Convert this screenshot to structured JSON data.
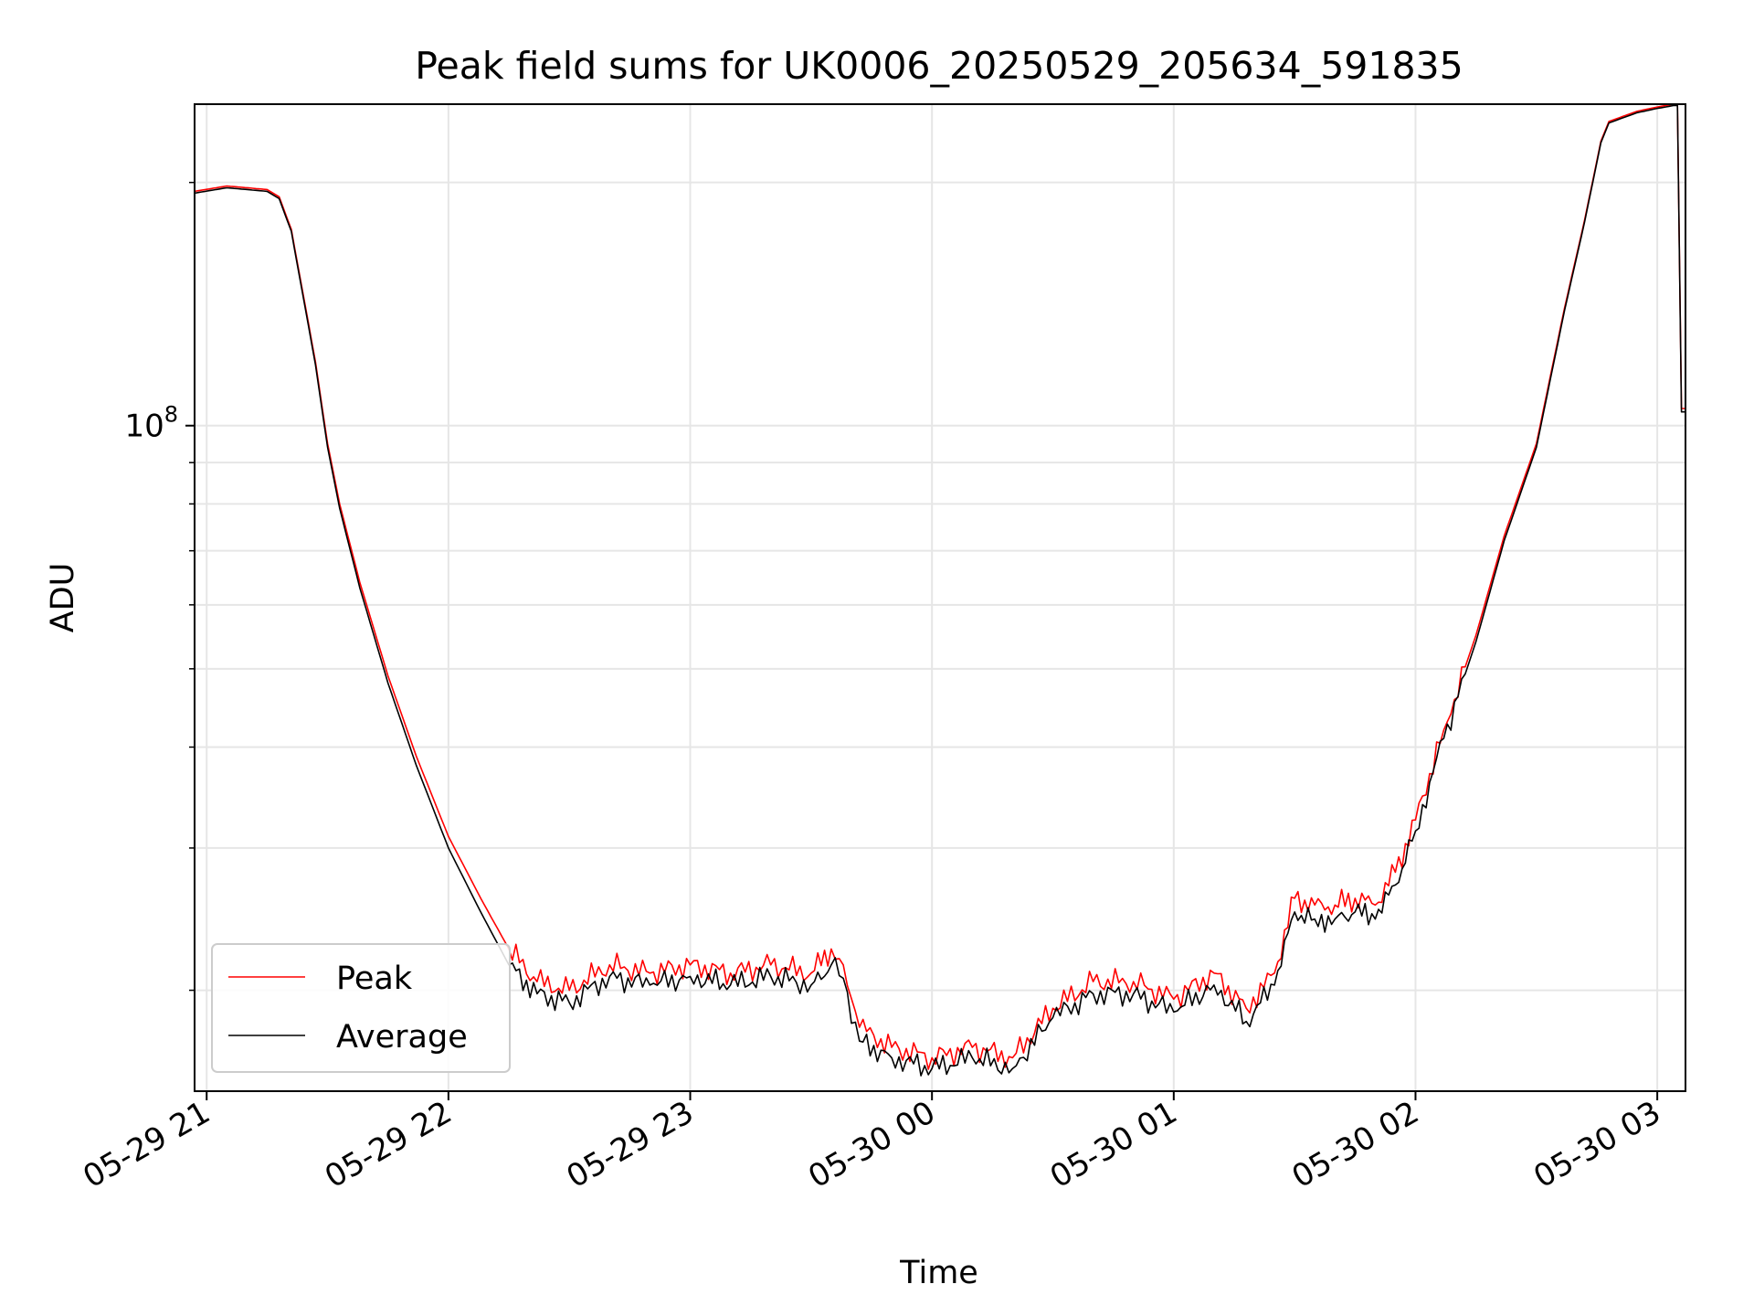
{
  "chart_data": {
    "type": "line",
    "title": "Peak field sums for UK0006_20250529_205634_591835",
    "xlabel": "Time",
    "ylabel": "ADU",
    "y_scale": "log",
    "grid": true,
    "legend_position": "lower-left",
    "xlim": [
      "2025-05-29 20:57",
      "2025-05-30 03:07"
    ],
    "ylim": [
      15000000,
      250000000
    ],
    "x_ticks": [
      "05-29 21",
      "05-29 22",
      "05-29 23",
      "05-30 00",
      "05-30 01",
      "05-30 02",
      "05-30 03"
    ],
    "y_major_ticks": [
      {
        "value": 100000000,
        "label_base": "10",
        "label_exp": "8"
      }
    ],
    "y_minor_ticks": [
      20000000,
      30000000,
      40000000,
      50000000,
      60000000,
      70000000,
      80000000,
      90000000,
      200000000
    ],
    "series": [
      {
        "name": "Peak",
        "color": "#ff0000",
        "x": [
          "2025-05-29 20:57",
          "2025-05-29 21:05",
          "2025-05-29 21:15",
          "2025-05-29 21:18",
          "2025-05-29 21:21",
          "2025-05-29 21:27",
          "2025-05-29 21:30",
          "2025-05-29 21:33",
          "2025-05-29 21:38",
          "2025-05-29 21:45",
          "2025-05-29 21:52",
          "2025-05-29 22:00",
          "2025-05-29 22:08",
          "2025-05-29 22:15",
          "2025-05-29 22:22",
          "2025-05-29 22:30",
          "2025-05-29 22:40",
          "2025-05-29 22:50",
          "2025-05-29 23:00",
          "2025-05-29 23:10",
          "2025-05-29 23:20",
          "2025-05-29 23:30",
          "2025-05-29 23:35",
          "2025-05-29 23:38",
          "2025-05-29 23:42",
          "2025-05-29 23:50",
          "2025-05-30 00:00",
          "2025-05-30 00:10",
          "2025-05-30 00:20",
          "2025-05-30 00:30",
          "2025-05-30 00:40",
          "2025-05-30 00:50",
          "2025-05-30 01:00",
          "2025-05-30 01:10",
          "2025-05-30 01:18",
          "2025-05-30 01:25",
          "2025-05-30 01:30",
          "2025-05-30 01:35",
          "2025-05-30 01:40",
          "2025-05-30 01:45",
          "2025-05-30 01:50",
          "2025-05-30 01:55",
          "2025-05-30 02:00",
          "2025-05-30 02:07",
          "2025-05-30 02:15",
          "2025-05-30 02:22",
          "2025-05-30 02:30",
          "2025-05-30 02:37",
          "2025-05-30 02:42",
          "2025-05-30 02:46",
          "2025-05-30 02:48",
          "2025-05-30 02:55",
          "2025-05-30 03:00",
          "2025-05-30 03:04",
          "2025-05-30 03:05",
          "2025-05-30 03:06",
          "2025-05-30 03:07"
        ],
        "y": [
          195000000,
          198000000,
          196000000,
          192000000,
          175000000,
          120000000,
          95000000,
          80000000,
          64000000,
          49000000,
          39000000,
          31000000,
          26000000,
          22500000,
          20500000,
          20000000,
          21500000,
          21000000,
          21500000,
          21000000,
          21500000,
          21000000,
          22500000,
          21500000,
          18000000,
          17000000,
          16500000,
          17000000,
          16500000,
          19000000,
          20500000,
          20500000,
          19500000,
          21000000,
          19000000,
          21000000,
          26000000,
          25500000,
          25500000,
          26000000,
          25500000,
          28000000,
          32500000,
          42000000,
          55000000,
          73000000,
          95000000,
          140000000,
          180000000,
          225000000,
          238000000,
          245000000,
          248000000,
          250000000,
          250000000,
          105000000,
          105000000
        ]
      },
      {
        "name": "Average",
        "color": "#000000",
        "x": [
          "2025-05-29 20:57",
          "2025-05-29 21:05",
          "2025-05-29 21:15",
          "2025-05-29 21:18",
          "2025-05-29 21:21",
          "2025-05-29 21:27",
          "2025-05-29 21:30",
          "2025-05-29 21:33",
          "2025-05-29 21:38",
          "2025-05-29 21:45",
          "2025-05-29 21:52",
          "2025-05-29 22:00",
          "2025-05-29 22:08",
          "2025-05-29 22:15",
          "2025-05-29 22:22",
          "2025-05-29 22:30",
          "2025-05-29 22:40",
          "2025-05-29 22:50",
          "2025-05-29 23:00",
          "2025-05-29 23:10",
          "2025-05-29 23:20",
          "2025-05-29 23:30",
          "2025-05-29 23:35",
          "2025-05-29 23:38",
          "2025-05-29 23:42",
          "2025-05-29 23:50",
          "2025-05-30 00:00",
          "2025-05-30 00:10",
          "2025-05-30 00:20",
          "2025-05-30 00:30",
          "2025-05-30 00:40",
          "2025-05-30 00:50",
          "2025-05-30 01:00",
          "2025-05-30 01:10",
          "2025-05-30 01:18",
          "2025-05-30 01:25",
          "2025-05-30 01:30",
          "2025-05-30 01:35",
          "2025-05-30 01:40",
          "2025-05-30 01:45",
          "2025-05-30 01:50",
          "2025-05-30 01:55",
          "2025-05-30 02:00",
          "2025-05-30 02:07",
          "2025-05-30 02:15",
          "2025-05-30 02:22",
          "2025-05-30 02:30",
          "2025-05-30 02:37",
          "2025-05-30 02:42",
          "2025-05-30 02:46",
          "2025-05-30 02:48",
          "2025-05-30 02:55",
          "2025-05-30 03:00",
          "2025-05-30 03:04",
          "2025-05-30 03:05",
          "2025-05-30 03:06",
          "2025-05-30 03:07"
        ],
        "y": [
          194000000,
          197000000,
          195000000,
          191000000,
          174000000,
          119000000,
          94000000,
          79000000,
          63000000,
          48000000,
          38000000,
          30000000,
          25000000,
          21500000,
          19800000,
          19300000,
          20800000,
          20300000,
          20800000,
          20300000,
          20800000,
          20300000,
          21500000,
          20700000,
          17300000,
          16500000,
          16000000,
          16500000,
          16000000,
          18500000,
          19800000,
          19800000,
          18800000,
          20300000,
          18300000,
          20300000,
          25000000,
          24500000,
          24500000,
          25000000,
          24500000,
          27000000,
          31500000,
          41000000,
          54000000,
          72000000,
          94000000,
          139000000,
          179000000,
          224000000,
          237000000,
          244000000,
          247000000,
          249000000,
          249000000,
          104000000,
          104000000
        ]
      }
    ]
  }
}
